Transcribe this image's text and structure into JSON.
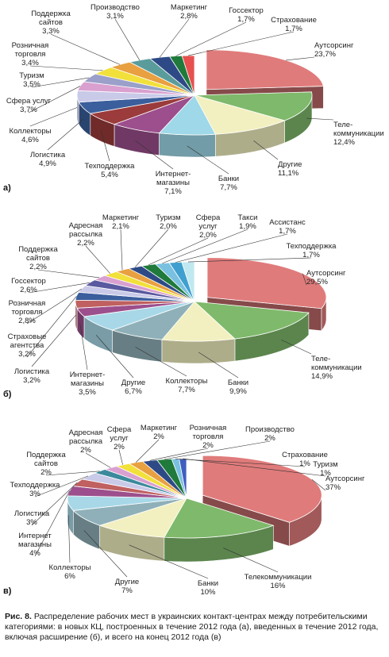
{
  "chart_data": [
    {
      "type": "pie",
      "panel": "а)",
      "slices": [
        {
          "label": "Аутсорсинг",
          "value": 23.7,
          "display": "23,7%",
          "color": "#e07b7b"
        },
        {
          "label": "Теле-\nкоммуникации",
          "value": 12.4,
          "display": "12,4%",
          "color": "#7fb96b"
        },
        {
          "label": "Другие",
          "value": 11.1,
          "display": "11,1%",
          "color": "#f2f0c0"
        },
        {
          "label": "Банки",
          "value": 7.7,
          "display": "7,7%",
          "color": "#9fd8e8"
        },
        {
          "label": "Интернет-\nмагазины",
          "value": 7.1,
          "display": "7,1%",
          "color": "#9c4f8c"
        },
        {
          "label": "Техподдержка",
          "value": 5.4,
          "display": "5,4%",
          "color": "#9b3b3b"
        },
        {
          "label": "Логистика",
          "value": 4.9,
          "display": "4,9%",
          "color": "#3b5e9c"
        },
        {
          "label": "Коллекторы",
          "value": 4.6,
          "display": "4,6%",
          "color": "#c9c9e8"
        },
        {
          "label": "Сфера услуг",
          "value": 3.7,
          "display": "3,7%",
          "color": "#d9a0d0"
        },
        {
          "label": "Туризм",
          "value": 3.5,
          "display": "3,5%",
          "color": "#9aa0c9"
        },
        {
          "label": "Розничная\nторговля",
          "value": 3.4,
          "display": "3,4%",
          "color": "#f2e03b"
        },
        {
          "label": "Поддержка\nсайтов",
          "value": 3.3,
          "display": "3,3%",
          "color": "#e8a040"
        },
        {
          "label": "Производство",
          "value": 3.1,
          "display": "3,1%",
          "color": "#5a9c9c"
        },
        {
          "label": "Маркетинг",
          "value": 2.8,
          "display": "2,8%",
          "color": "#2e4a86"
        },
        {
          "label": "Госсектор",
          "value": 1.7,
          "display": "1,7%",
          "color": "#1f7a3b"
        },
        {
          "label": "Страхование",
          "value": 1.7,
          "display": "1,7%",
          "color": "#e85050"
        }
      ]
    },
    {
      "type": "pie",
      "panel": "б)",
      "slices": [
        {
          "label": "Аутсорсинг",
          "value": 29.5,
          "display": "29,5%",
          "color": "#e07b7b"
        },
        {
          "label": "Теле-\nкоммуникации",
          "value": 14.9,
          "display": "14,9%",
          "color": "#7fb96b"
        },
        {
          "label": "Банки",
          "value": 9.9,
          "display": "9,9%",
          "color": "#f2f0c0"
        },
        {
          "label": "Коллекторы",
          "value": 7.7,
          "display": "7,7%",
          "color": "#8fb0b8"
        },
        {
          "label": "Другие",
          "value": 6.7,
          "display": "6,7%",
          "color": "#a8d8e8"
        },
        {
          "label": "Интернет-\nмагазины",
          "value": 3.5,
          "display": "3,5%",
          "color": "#9c4f8c"
        },
        {
          "label": "Логистика",
          "value": 3.2,
          "display": "3,2%",
          "color": "#c06060"
        },
        {
          "label": "Страховые\nагентства",
          "value": 3.2,
          "display": "3,2%",
          "color": "#3b5e9c"
        },
        {
          "label": "Розничная\nторговля",
          "value": 2.8,
          "display": "2,8%",
          "color": "#c9c9e8"
        },
        {
          "label": "Госсектор",
          "value": 2.6,
          "display": "2,6%",
          "color": "#5a5aa0"
        },
        {
          "label": "Поддержка\nсайтов",
          "value": 2.2,
          "display": "2,2%",
          "color": "#d9a0d0"
        },
        {
          "label": "Адресная\nрассылка",
          "value": 2.2,
          "display": "2,2%",
          "color": "#f2e03b"
        },
        {
          "label": "Маркетинг",
          "value": 2.1,
          "display": "2,1%",
          "color": "#e8a040"
        },
        {
          "label": "Туризм",
          "value": 2.0,
          "display": "2,0%",
          "color": "#2e4a86"
        },
        {
          "label": "Сфера\nуслуг",
          "value": 2.0,
          "display": "2,0%",
          "color": "#1f7a3b"
        },
        {
          "label": "Такси",
          "value": 1.9,
          "display": "1,9%",
          "color": "#7ac0e0"
        },
        {
          "label": "Ассистанс",
          "value": 1.7,
          "display": "1,7%",
          "color": "#3fa0d0"
        },
        {
          "label": "Техподдержка",
          "value": 1.7,
          "display": "1,7%",
          "color": "#c0e8f0"
        }
      ]
    },
    {
      "type": "pie",
      "panel": "в)",
      "slices": [
        {
          "label": "Аутсорсинг",
          "value": 37,
          "display": "37%",
          "color": "#e07b7b"
        },
        {
          "label": "Телекоммуникации",
          "value": 16,
          "display": "16%",
          "color": "#7fb96b"
        },
        {
          "label": "Банки",
          "value": 10,
          "display": "10%",
          "color": "#f2f0c0"
        },
        {
          "label": "Другие",
          "value": 7,
          "display": "7%",
          "color": "#8fb0b8"
        },
        {
          "label": "Коллекторы",
          "value": 6,
          "display": "6%",
          "color": "#a8d8e8"
        },
        {
          "label": "Интернет\nмагазины",
          "value": 4,
          "display": "4%",
          "color": "#9c4f8c"
        },
        {
          "label": "Логистика",
          "value": 3,
          "display": "3%",
          "color": "#c06060"
        },
        {
          "label": "Техподдержка",
          "value": 3,
          "display": "3%",
          "color": "#c9c9e8"
        },
        {
          "label": "Поддержка\nсайтов",
          "value": 2,
          "display": "2%",
          "color": "#3b8a9c"
        },
        {
          "label": "Адресная\nрассылка",
          "value": 2,
          "display": "2%",
          "color": "#d9a0d0"
        },
        {
          "label": "Сфера\nуслуг",
          "value": 2,
          "display": "2%",
          "color": "#f2e03b"
        },
        {
          "label": "Маркетинг",
          "value": 2,
          "display": "2%",
          "color": "#e8a040"
        },
        {
          "label": "Розничная\nторговля",
          "value": 2,
          "display": "2%",
          "color": "#2e4a86"
        },
        {
          "label": "Производство",
          "value": 2,
          "display": "2%",
          "color": "#1f7a3b"
        },
        {
          "label": "Страхование",
          "value": 1,
          "display": "1%",
          "color": "#7ac0e0"
        },
        {
          "label": "Туризм",
          "value": 1,
          "display": "1%",
          "color": "#3f5ec0"
        }
      ]
    }
  ],
  "caption": {
    "prefix": "Рис. 8.",
    "text": "Распределение рабочих мест в украинских контакт-центрах между потребительскими категориями: в новых КЦ, построенных в течение 2012 года (а), введенных в течение 2012 года, включая расширение (б), и всего на конец 2012 года (в)"
  }
}
